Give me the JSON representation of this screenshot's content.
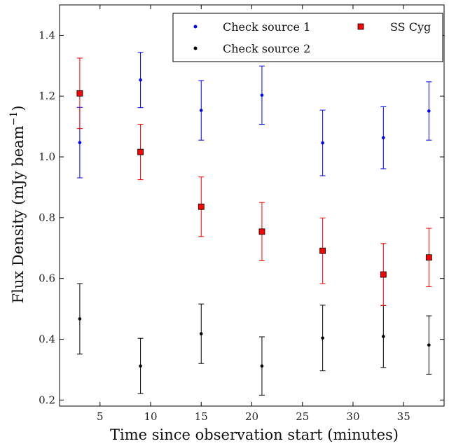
{
  "chart_data": {
    "type": "scatter",
    "xlabel": "Time since observation start (minutes)",
    "ylabel": "Flux Density (mJy beam",
    "ylabel_sup": "−1",
    "ylabel_close": ")",
    "xlim": [
      1,
      39
    ],
    "ylim": [
      0.18,
      1.5
    ],
    "xticks": [
      5,
      10,
      15,
      20,
      25,
      30,
      35
    ],
    "yticks": [
      0.2,
      0.4,
      0.6,
      0.8,
      1.0,
      1.2,
      1.4
    ],
    "xtick_labels": [
      "5",
      "10",
      "15",
      "20",
      "25",
      "30",
      "35"
    ],
    "ytick_labels": [
      "0.2",
      "0.4",
      "0.6",
      "0.8",
      "1.0",
      "1.2",
      "1.4"
    ],
    "grid": false,
    "legend_position": "top-right",
    "series": [
      {
        "name": "Check source 1",
        "color": "#0000ff",
        "marker": "dot",
        "x": [
          3,
          9,
          15,
          21,
          27,
          33,
          37.5
        ],
        "y": [
          1.047,
          1.253,
          1.153,
          1.203,
          1.046,
          1.063,
          1.151
        ],
        "err": [
          0.116,
          0.091,
          0.098,
          0.096,
          0.108,
          0.102,
          0.096
        ]
      },
      {
        "name": "Check source 2",
        "color": "#000000",
        "marker": "dot",
        "x": [
          3,
          9,
          15,
          21,
          27,
          33,
          37.5
        ],
        "y": [
          0.467,
          0.312,
          0.418,
          0.312,
          0.404,
          0.409,
          0.381
        ],
        "err": [
          0.116,
          0.091,
          0.098,
          0.096,
          0.108,
          0.102,
          0.096
        ]
      },
      {
        "name": "SS Cyg",
        "color": "#ff0000",
        "marker": "square",
        "x": [
          3,
          9,
          15,
          21,
          27,
          33,
          37.5
        ],
        "y": [
          1.209,
          1.016,
          0.836,
          0.754,
          0.691,
          0.613,
          0.669
        ],
        "err": [
          0.116,
          0.091,
          0.098,
          0.096,
          0.108,
          0.102,
          0.096
        ]
      }
    ]
  }
}
